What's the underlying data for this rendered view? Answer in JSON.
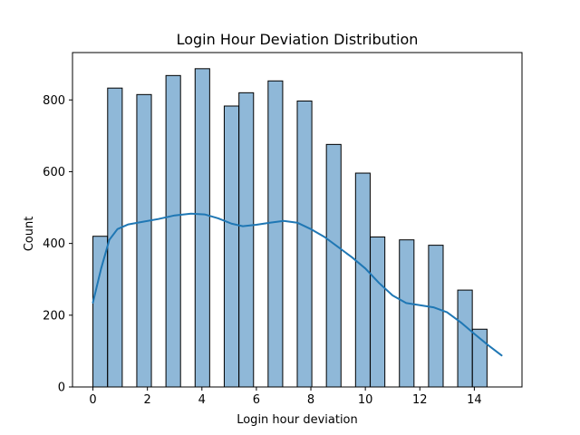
{
  "chart_data": {
    "type": "bar",
    "title": "Login Hour Deviation Distribution",
    "xlabel": "Login hour deviation",
    "ylabel": "Count",
    "xlim": [
      -0.75,
      15.75
    ],
    "ylim": [
      0,
      932
    ],
    "x_ticks": [
      0,
      2,
      4,
      6,
      8,
      10,
      12,
      14
    ],
    "y_ticks": [
      0,
      200,
      400,
      600,
      800
    ],
    "bin_width": 0.5357,
    "bins": [
      {
        "left": 0.0,
        "value": 420
      },
      {
        "left": 0.54,
        "value": 833
      },
      {
        "left": 1.61,
        "value": 815
      },
      {
        "left": 2.68,
        "value": 868
      },
      {
        "left": 3.75,
        "value": 887
      },
      {
        "left": 4.82,
        "value": 783
      },
      {
        "left": 5.36,
        "value": 820
      },
      {
        "left": 6.43,
        "value": 853
      },
      {
        "left": 7.5,
        "value": 797
      },
      {
        "left": 8.57,
        "value": 676
      },
      {
        "left": 9.64,
        "value": 596
      },
      {
        "left": 10.18,
        "value": 418
      },
      {
        "left": 11.25,
        "value": 410
      },
      {
        "left": 12.32,
        "value": 395
      },
      {
        "left": 13.39,
        "value": 270
      },
      {
        "left": 13.93,
        "value": 161
      }
    ],
    "kde": {
      "name": "",
      "points": [
        [
          0.0,
          235
        ],
        [
          0.3,
          330
        ],
        [
          0.6,
          410
        ],
        [
          0.9,
          440
        ],
        [
          1.3,
          453
        ],
        [
          1.8,
          460
        ],
        [
          2.4,
          468
        ],
        [
          3.0,
          478
        ],
        [
          3.6,
          483
        ],
        [
          4.1,
          481
        ],
        [
          4.6,
          470
        ],
        [
          5.1,
          455
        ],
        [
          5.5,
          448
        ],
        [
          6.0,
          452
        ],
        [
          6.5,
          458
        ],
        [
          7.0,
          463
        ],
        [
          7.5,
          458
        ],
        [
          8.0,
          440
        ],
        [
          8.5,
          418
        ],
        [
          9.0,
          390
        ],
        [
          9.5,
          362
        ],
        [
          10.0,
          330
        ],
        [
          10.5,
          290
        ],
        [
          11.0,
          255
        ],
        [
          11.5,
          234
        ],
        [
          12.0,
          228
        ],
        [
          12.5,
          222
        ],
        [
          13.0,
          208
        ],
        [
          13.5,
          180
        ],
        [
          14.0,
          148
        ],
        [
          14.5,
          117
        ],
        [
          15.0,
          88
        ]
      ]
    },
    "colors": {
      "bar_fill": "#8fb8d8",
      "bar_edge": "#000000",
      "kde_line": "#1f77b4"
    },
    "grid": false
  }
}
